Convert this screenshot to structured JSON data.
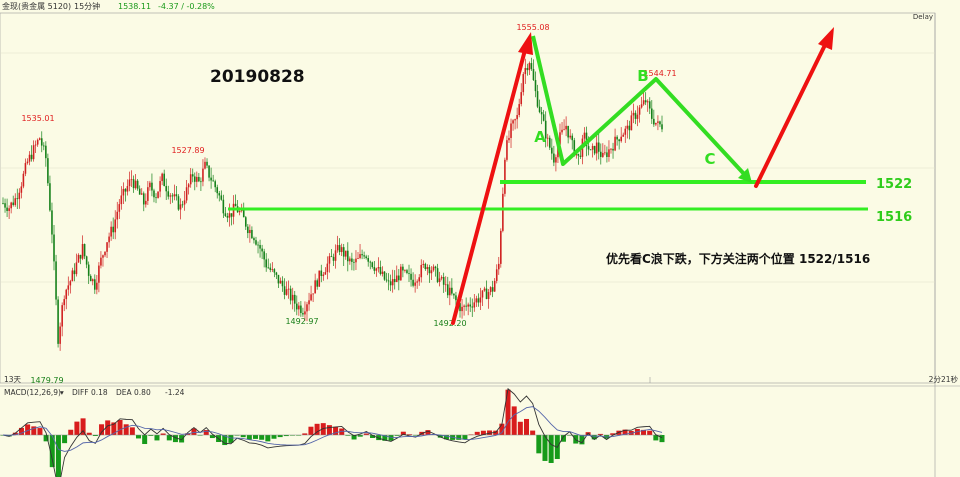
{
  "header": {
    "symbol": "金现(贵金属 5120)",
    "period": "15分钟",
    "last_price": "1538.11",
    "change": "-4.37 / -0.28%",
    "delay": "Delay",
    "countdown": "2分21秒",
    "days": "13天"
  },
  "annotations": {
    "date": "20190828",
    "comment": "优先看C浪下跌，下方关注两个位置 1522/1516",
    "wave_a": "A",
    "wave_b": "B",
    "wave_c": "C",
    "level_1522": "1522",
    "level_1516": "1516"
  },
  "colors": {
    "up_arrow": "#ee1111",
    "wave": "#33dd22",
    "level": "#33ee22",
    "candle_up": "#d02020",
    "candle_down": "#15801a"
  },
  "chart_data": [
    {
      "type": "candlestick",
      "name": "price",
      "ylim": [
        1475,
        1565
      ],
      "price_labels": [
        {
          "text": "1535.01",
          "value": 1535.01
        },
        {
          "text": "1479.79",
          "value": 1479.79
        },
        {
          "text": "1527.89",
          "value": 1527.89
        },
        {
          "text": "1492.97",
          "value": 1492.97
        },
        {
          "text": "1492.20",
          "value": 1492.2
        },
        {
          "text": "1555.08",
          "value": 1555.08
        },
        {
          "text": "1544.71",
          "value": 1544.71
        }
      ],
      "series_close": [
        1519,
        1518,
        1520,
        1524,
        1529,
        1532,
        1535,
        1530,
        1512,
        1486,
        1497,
        1500,
        1504,
        1508,
        1502,
        1499,
        1505,
        1510,
        1513,
        1519,
        1522,
        1525,
        1522,
        1519,
        1523,
        1521,
        1525,
        1522,
        1520,
        1518,
        1522,
        1526,
        1524,
        1528,
        1525,
        1522,
        1518,
        1516,
        1518,
        1516,
        1513,
        1511,
        1508,
        1504,
        1502,
        1500,
        1498,
        1496,
        1494,
        1493,
        1496,
        1499,
        1502,
        1504,
        1506,
        1508,
        1506,
        1504,
        1505,
        1507,
        1505,
        1503,
        1501,
        1499,
        1500,
        1502,
        1501,
        1500,
        1502,
        1504,
        1503,
        1501,
        1499,
        1497,
        1495,
        1493,
        1494,
        1495,
        1496,
        1497,
        1498,
        1504,
        1531,
        1537,
        1540,
        1551,
        1554,
        1546,
        1540,
        1534,
        1530,
        1535,
        1538,
        1533,
        1530,
        1535,
        1531,
        1533,
        1530,
        1532,
        1534,
        1536,
        1537,
        1540,
        1542,
        1544,
        1540,
        1538
      ]
    },
    {
      "type": "line",
      "name": "MACD(12,26,9)",
      "legend": "MACD(12,26,9)",
      "diff_label": "DIFF 0.18",
      "dea_label": "DEA 0.80",
      "macd_label": "-1.24"
    }
  ]
}
